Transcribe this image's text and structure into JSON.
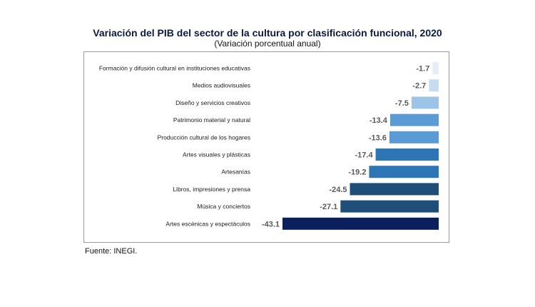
{
  "title": "Variación del PIB del sector de la cultura por clasificación funcional, 2020",
  "subtitle": "(Variación porcentual anual)",
  "source": "Fuente: INEGI.",
  "chart_data": {
    "type": "bar",
    "orientation": "horizontal",
    "title": "Variación del PIB del sector de la cultura por clasificación funcional, 2020",
    "subtitle": "(Variación porcentual anual)",
    "categories": [
      "Formación y difusión cultural en instituciones educativas",
      "Medios audiovisuales",
      "Diseño y servicios creativos",
      "Patrimonio material y natural",
      "Producción cultural de los hogares",
      "Artes visuales y plásticas",
      "Artesanías",
      "Libros, impresiones y prensa",
      "Música y conciertos",
      "Artes escénicas y espectáculos"
    ],
    "values": [
      -1.7,
      -2.7,
      -7.5,
      -13.4,
      -13.6,
      -17.4,
      -19.2,
      -24.5,
      -27.1,
      -43.1
    ],
    "value_labels": [
      "-1.7",
      "-2.7",
      "-7.5",
      "-13.4",
      "-13.6",
      "-17.4",
      "-19.2",
      "-24.5",
      "-27.1",
      "-43.1"
    ],
    "colors": [
      "#e4edf8",
      "#c7dbf0",
      "#9dc3e6",
      "#5b9bd5",
      "#5b9bd5",
      "#2e75b6",
      "#2e75b6",
      "#1f4e79",
      "#1f4e79",
      "#0a1f5c"
    ],
    "xlabel": "",
    "ylabel": "",
    "xlim": [
      -43.1,
      0
    ],
    "grid": false,
    "legend": "none"
  }
}
